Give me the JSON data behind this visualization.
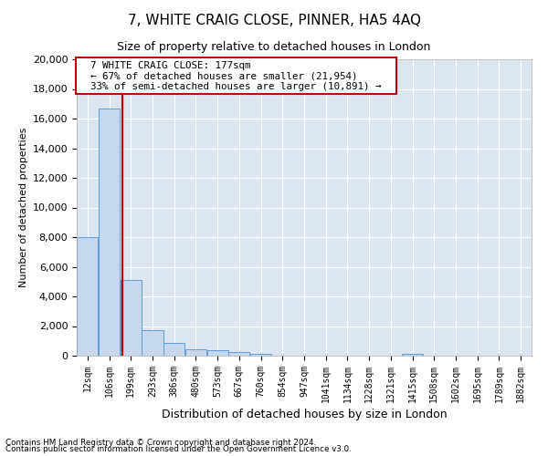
{
  "title": "7, WHITE CRAIG CLOSE, PINNER, HA5 4AQ",
  "subtitle": "Size of property relative to detached houses in London",
  "xlabel": "Distribution of detached houses by size in London",
  "ylabel": "Number of detached properties",
  "property_label": "7 WHITE CRAIG CLOSE: 177sqm",
  "annotation_line1": "← 67% of detached houses are smaller (21,954)",
  "annotation_line2": "33% of semi-detached houses are larger (10,891) →",
  "footer_line1": "Contains HM Land Registry data © Crown copyright and database right 2024.",
  "footer_line2": "Contains public sector information licensed under the Open Government Licence v3.0.",
  "bar_color": "#c5d8ed",
  "bar_edge_color": "#5b9bd5",
  "vline_color": "#c00000",
  "annotation_box_color": "#c00000",
  "grid_color": "#c8d4e3",
  "bg_color": "#dce6f1",
  "categories": [
    "12sqm",
    "106sqm",
    "199sqm",
    "293sqm",
    "386sqm",
    "480sqm",
    "573sqm",
    "667sqm",
    "760sqm",
    "854sqm",
    "947sqm",
    "1041sqm",
    "1134sqm",
    "1228sqm",
    "1321sqm",
    "1415sqm",
    "1508sqm",
    "1602sqm",
    "1695sqm",
    "1789sqm",
    "1882sqm"
  ],
  "values": [
    8000,
    16700,
    5100,
    1700,
    850,
    450,
    350,
    250,
    150,
    0,
    0,
    0,
    0,
    0,
    0,
    100,
    0,
    0,
    0,
    0,
    0
  ],
  "ylim": [
    0,
    20000
  ],
  "yticks": [
    0,
    2000,
    4000,
    6000,
    8000,
    10000,
    12000,
    14000,
    16000,
    18000,
    20000
  ],
  "vline_x_index": 1.62
}
